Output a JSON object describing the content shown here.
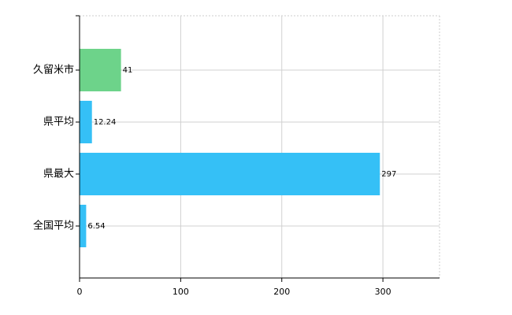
{
  "chart_data": {
    "type": "hbar",
    "categories": [
      "久留米市",
      "県平均",
      "県最大",
      "全国平均"
    ],
    "values": [
      41,
      12.24,
      297,
      6.54
    ],
    "colors": [
      "#6dd38a",
      "#35c0f6",
      "#35c0f6",
      "#35c0f6"
    ],
    "xlim": [
      0,
      356
    ],
    "xticks": [
      0,
      100,
      200,
      300
    ],
    "grid": true
  }
}
